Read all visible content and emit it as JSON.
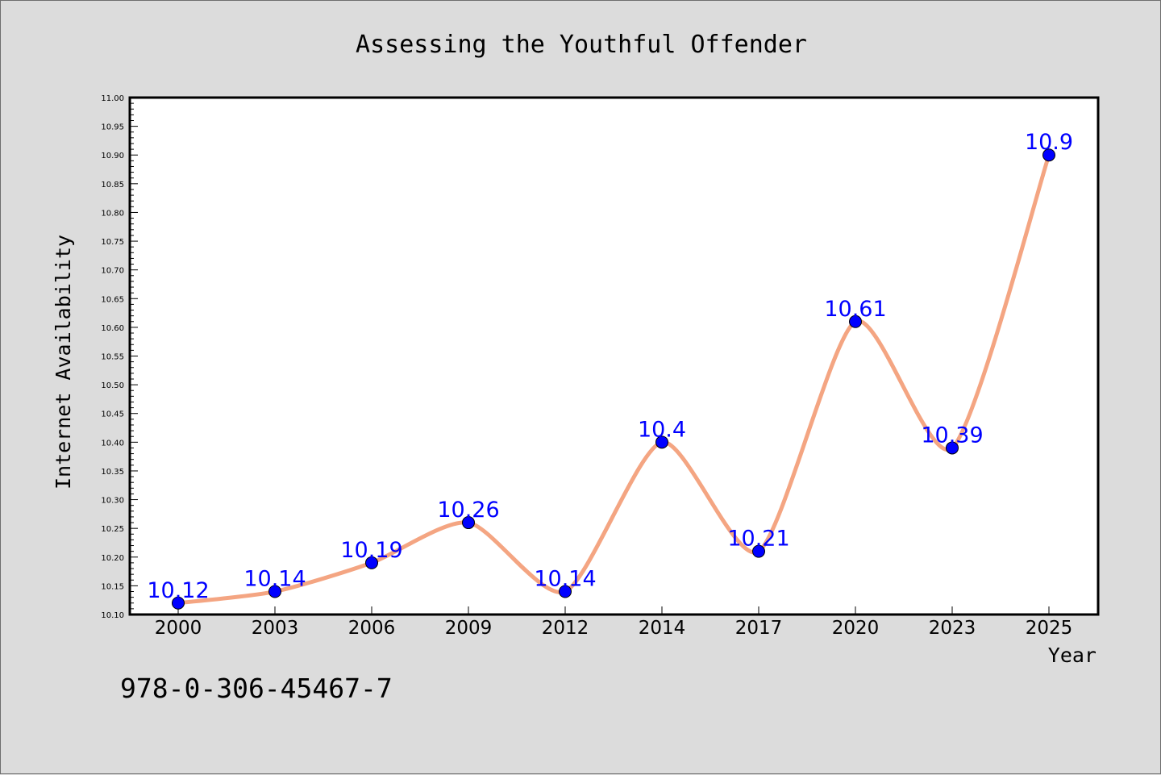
{
  "chart_data": {
    "type": "line",
    "title": "Assessing the Youthful Offender",
    "xlabel": "Year",
    "ylabel": "Internet Availability",
    "x": [
      "2000",
      "2003",
      "2006",
      "2009",
      "2012",
      "2014",
      "2017",
      "2020",
      "2023",
      "2025"
    ],
    "series": [
      {
        "values": [
          10.12,
          10.14,
          10.19,
          10.26,
          10.14,
          10.4,
          10.21,
          10.61,
          10.39,
          10.9
        ],
        "data_labels": [
          "10.12",
          "10.14",
          "10.19",
          "10.26",
          "10.14",
          "10.4",
          "10.21",
          "10.61",
          "10.39",
          "10.9"
        ],
        "line_color": "#f4a582",
        "marker_color": "#0000ff"
      }
    ],
    "ylim": [
      10.1,
      11.0
    ],
    "yticks": [
      "10.10",
      "10.15",
      "10.20",
      "10.25",
      "10.30",
      "10.35",
      "10.40",
      "10.45",
      "10.50",
      "10.55",
      "10.60",
      "10.65",
      "10.70",
      "10.75",
      "10.80",
      "10.85",
      "10.90",
      "10.95",
      "11.00"
    ],
    "grid": false,
    "legend": "none",
    "label_color": "#0000ff"
  },
  "footer": {
    "code": "978-0-306-45467-7"
  }
}
